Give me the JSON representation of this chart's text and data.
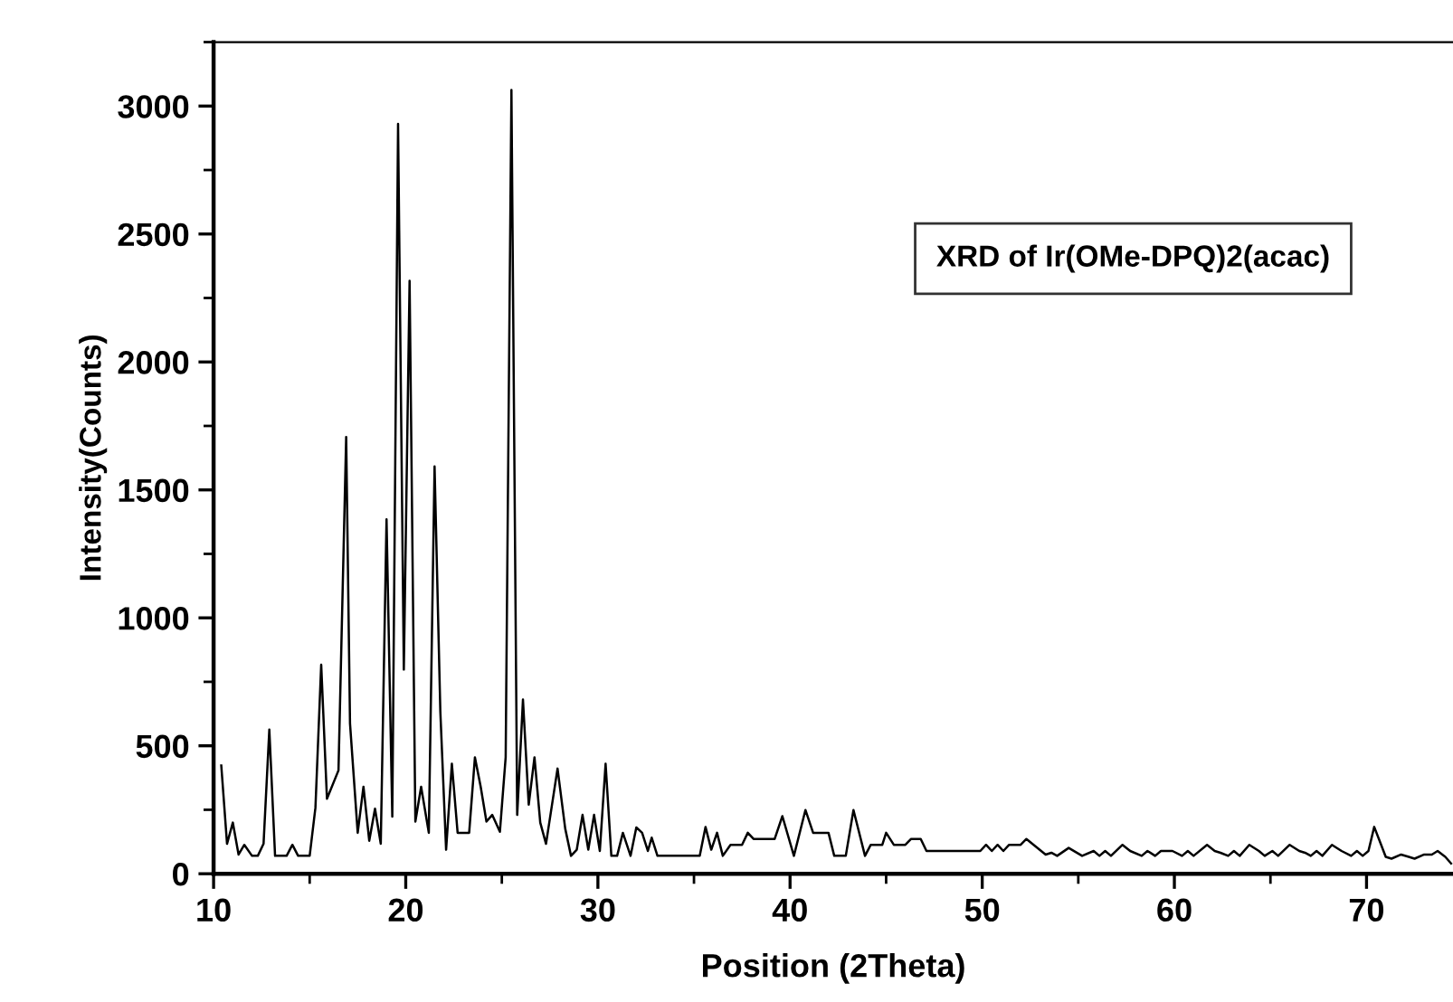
{
  "chart_data": {
    "type": "line",
    "xlabel": "Position (2Theta)",
    "ylabel": "Intensity(Counts)",
    "xlim": [
      10,
      74.5
    ],
    "ylim": [
      0,
      3250
    ],
    "xticks": [
      10,
      20,
      30,
      40,
      50,
      60,
      70
    ],
    "yticks": [
      0,
      500,
      1000,
      1500,
      2000,
      2500,
      3000
    ],
    "grid": false,
    "legend": "top right",
    "marker": "none",
    "line_style": "solid",
    "series": [
      {
        "name": "XRD of Ir(OMe-DPQ)2(acac)",
        "color": "#000000",
        "x": [
          10.4,
          10.7,
          11.0,
          11.3,
          11.6,
          12.0,
          12.3,
          12.6,
          12.9,
          13.2,
          13.8,
          14.1,
          14.4,
          15.0,
          15.3,
          15.6,
          15.9,
          16.5,
          16.9,
          17.1,
          17.5,
          17.8,
          18.1,
          18.4,
          18.7,
          19.0,
          19.3,
          19.6,
          19.9,
          20.2,
          20.5,
          20.8,
          21.2,
          21.5,
          21.8,
          22.1,
          22.4,
          22.7,
          23.3,
          23.6,
          23.9,
          24.2,
          24.5,
          24.9,
          25.2,
          25.5,
          25.8,
          26.1,
          26.4,
          26.7,
          27.0,
          27.3,
          27.9,
          28.3,
          28.6,
          28.9,
          29.2,
          29.5,
          29.8,
          30.1,
          30.4,
          30.7,
          31.0,
          31.3,
          31.7,
          32.0,
          32.3,
          32.6,
          32.8,
          33.1,
          35.3,
          35.6,
          35.9,
          36.2,
          36.5,
          36.9,
          37.5,
          37.8,
          38.1,
          39.2,
          39.6,
          40.2,
          40.8,
          41.2,
          42.0,
          42.3,
          42.9,
          43.3,
          43.9,
          44.2,
          44.8,
          45.0,
          45.4,
          46.0,
          46.3,
          46.8,
          47.1,
          49.9,
          50.2,
          50.5,
          50.8,
          51.1,
          51.4,
          52.0,
          52.3,
          53.3,
          53.6,
          53.9,
          54.5,
          55.2,
          55.8,
          56.1,
          56.4,
          56.7,
          57.3,
          57.7,
          58.3,
          58.6,
          59.0,
          59.3,
          59.9,
          60.4,
          60.7,
          61.0,
          61.7,
          62.1,
          62.4,
          62.8,
          63.1,
          63.4,
          63.9,
          64.4,
          64.7,
          65.1,
          65.4,
          66.0,
          66.5,
          66.8,
          67.1,
          67.4,
          67.7,
          68.2,
          68.7,
          69.2,
          69.5,
          69.8,
          70.1,
          70.4,
          71.0,
          71.3,
          71.8,
          72.2,
          72.5,
          73.0,
          73.4,
          73.7,
          74.1,
          74.4
        ],
        "values": [
          423,
          117,
          200,
          75,
          113,
          70,
          70,
          117,
          563,
          70,
          70,
          113,
          70,
          70,
          258,
          817,
          293,
          404,
          1707,
          587,
          160,
          340,
          129,
          254,
          117,
          1385,
          223,
          2930,
          798,
          2317,
          204,
          340,
          160,
          1592,
          634,
          94,
          430,
          160,
          160,
          455,
          340,
          204,
          230,
          164,
          455,
          3063,
          230,
          681,
          270,
          455,
          200,
          117,
          411,
          176,
          70,
          94,
          230,
          94,
          230,
          89,
          430,
          70,
          70,
          160,
          70,
          181,
          160,
          89,
          141,
          70,
          70,
          183,
          94,
          160,
          70,
          113,
          113,
          160,
          136,
          136,
          225,
          70,
          249,
          160,
          160,
          70,
          70,
          249,
          70,
          113,
          113,
          160,
          113,
          113,
          136,
          136,
          89,
          89,
          113,
          89,
          113,
          89,
          113,
          113,
          136,
          75,
          82,
          70,
          101,
          70,
          89,
          70,
          89,
          70,
          113,
          89,
          70,
          89,
          70,
          89,
          89,
          70,
          89,
          70,
          113,
          89,
          82,
          70,
          89,
          70,
          113,
          89,
          70,
          89,
          70,
          113,
          89,
          82,
          70,
          89,
          70,
          113,
          89,
          70,
          89,
          70,
          89,
          183,
          66,
          59,
          75,
          66,
          59,
          75,
          75,
          89,
          66,
          40
        ]
      }
    ]
  }
}
